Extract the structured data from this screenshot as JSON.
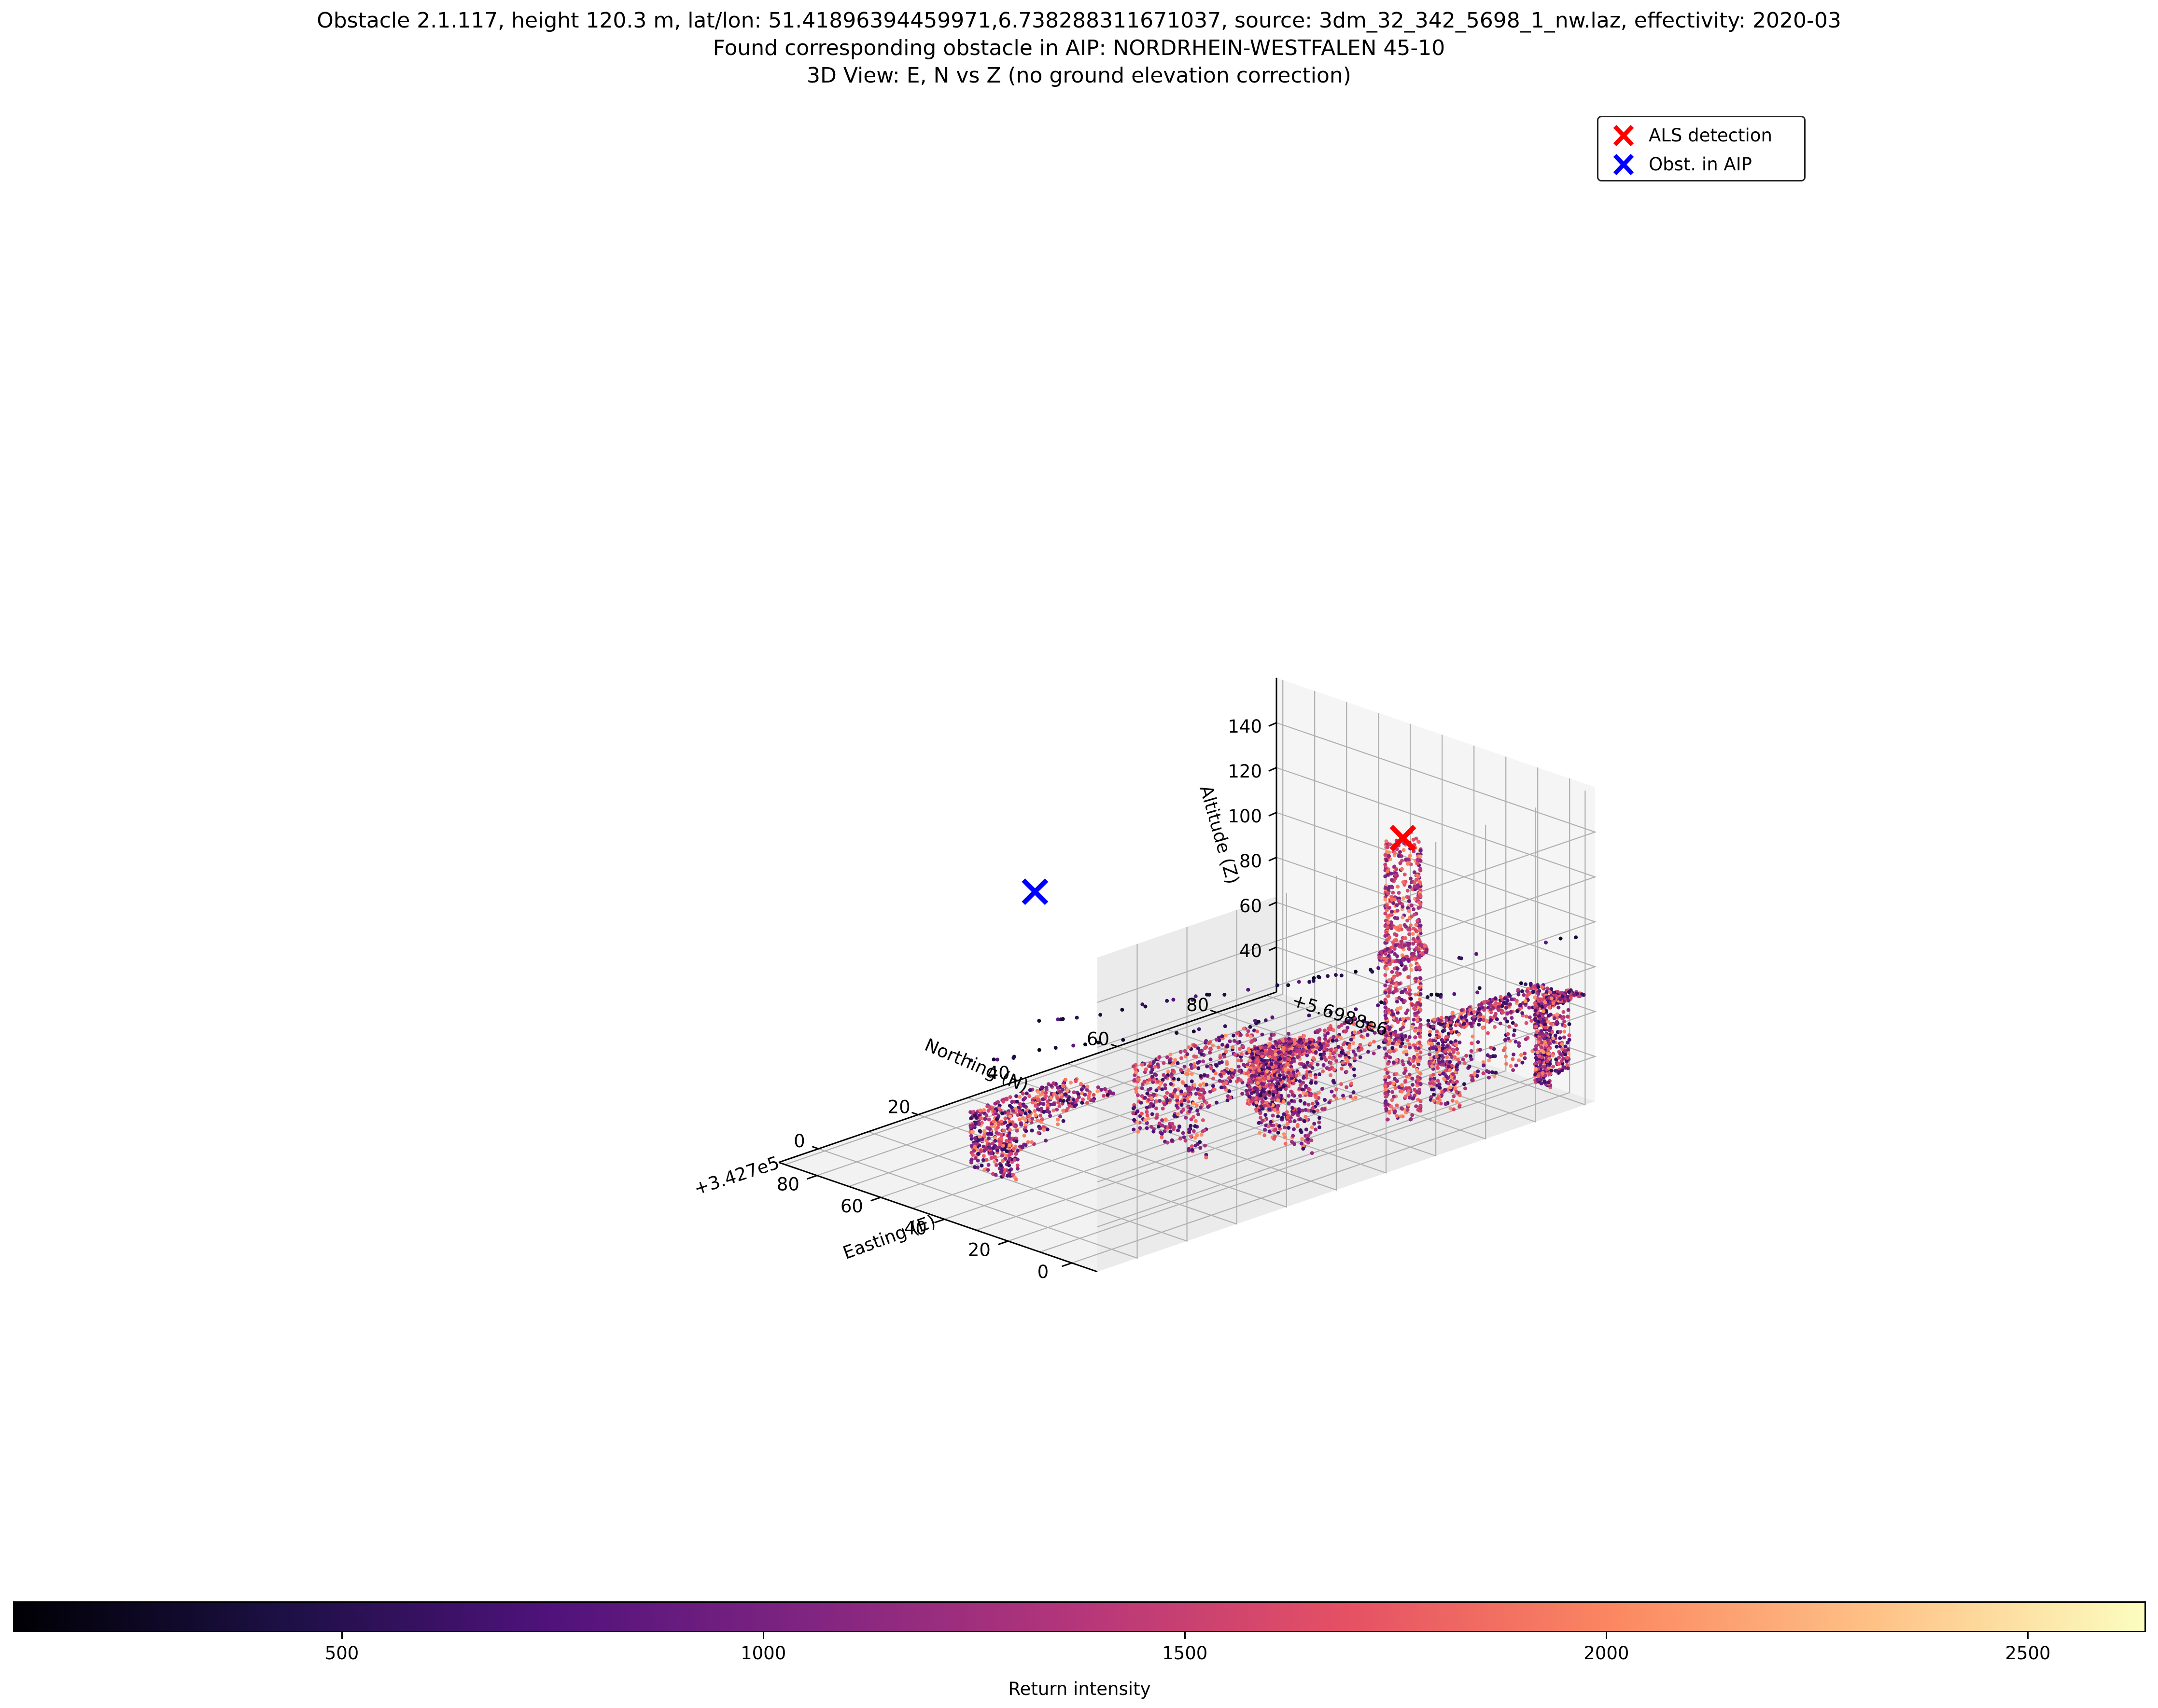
{
  "title": {
    "line1": "Obstacle 2.1.117, height 120.3 m, lat/lon: 51.41896394459971,6.738288311671037, source: 3dm_32_342_5698_1_nw.laz, effectivity: 2020-03",
    "line2": "Found corresponding obstacle in AIP: NORDRHEIN-WESTFALEN 45-10",
    "line3": "3D View: E, N vs Z (no ground elevation correction)"
  },
  "legend": {
    "entries": [
      {
        "label": "ALS detection",
        "marker": "x-marker",
        "color": "#ff0000"
      },
      {
        "label": "Obst. in AIP",
        "marker": "x-marker",
        "color": "#0000ff"
      }
    ]
  },
  "chart_data": {
    "type": "scatter",
    "projection": "3d",
    "axes": {
      "x": {
        "label": "Easting (E)",
        "offset_text": "+3.427e5",
        "ticks": [
          0,
          20,
          40,
          60,
          80
        ],
        "tick_labels": [
          "0",
          "20",
          "40",
          "60",
          "80"
        ],
        "range": [
          -8,
          92
        ]
      },
      "y": {
        "label": "Northing (N)",
        "offset_text": "+5.6988e6",
        "ticks": [
          0,
          20,
          40,
          60,
          80
        ],
        "tick_labels": [
          "0",
          "20",
          "40",
          "60",
          "80"
        ],
        "range": [
          -8,
          92
        ]
      },
      "z": {
        "label": "Altitude (Z)",
        "ticks": [
          40,
          60,
          80,
          100,
          120,
          140
        ],
        "tick_labels": [
          "40",
          "60",
          "80",
          "100",
          "120",
          "140"
        ],
        "range": [
          20,
          160
        ]
      }
    },
    "grid": true,
    "legend_position": "top-right",
    "series": [
      {
        "name": "ALS detection",
        "marker": "x",
        "color": "#ff0000",
        "points": [
          {
            "e": 7,
            "n": 63,
            "z": 152
          }
        ]
      },
      {
        "name": "Obst. in AIP",
        "marker": "x",
        "color": "#0000ff",
        "points": [
          {
            "e": 35,
            "n": 7,
            "z": 157
          }
        ]
      }
    ],
    "point_cloud": {
      "colormap": "magma",
      "color_by": "Return intensity",
      "structures": [
        {
          "name": "chimney",
          "center_e": 7,
          "center_n": 63,
          "radius": 3,
          "z_min": 28,
          "z_max": 152
        },
        {
          "name": "chimney-platform",
          "center_e": 7,
          "center_n": 63,
          "radius": 4,
          "z": 100
        },
        {
          "name": "main-building-left",
          "e": [
            0,
            10
          ],
          "n": [
            70,
            92
          ],
          "z": [
            28,
            64
          ]
        },
        {
          "name": "main-building-center",
          "e": [
            5,
            25
          ],
          "n": [
            45,
            65
          ],
          "z": [
            25,
            62
          ]
        },
        {
          "name": "main-building-right",
          "e": [
            25,
            48
          ],
          "n": [
            35,
            60
          ],
          "z": [
            22,
            52
          ]
        },
        {
          "name": "pipe-structure",
          "e": [
            10,
            20
          ],
          "n": [
            40,
            50
          ],
          "z": [
            45,
            68
          ]
        },
        {
          "name": "left-tower",
          "e": [
            -5,
            0
          ],
          "n": [
            85,
            92
          ],
          "z": [
            30,
            66
          ]
        },
        {
          "name": "right-trees",
          "e": [
            45,
            60
          ],
          "n": [
            10,
            30
          ],
          "z": [
            20,
            45
          ]
        },
        {
          "name": "powerline-1",
          "e": [
            -5,
            45
          ],
          "n": [
            92,
            5
          ],
          "z": 92
        },
        {
          "name": "powerline-2",
          "e": [
            -5,
            50
          ],
          "n": [
            85,
            0
          ],
          "z": 78
        }
      ]
    }
  },
  "colorbar": {
    "label": "Return intensity",
    "min": 110,
    "max": 2640,
    "ticks": [
      500,
      1000,
      1500,
      2000,
      2500
    ],
    "tick_labels": [
      "500",
      "1000",
      "1500",
      "2000",
      "2500"
    ],
    "colormap": "magma"
  }
}
